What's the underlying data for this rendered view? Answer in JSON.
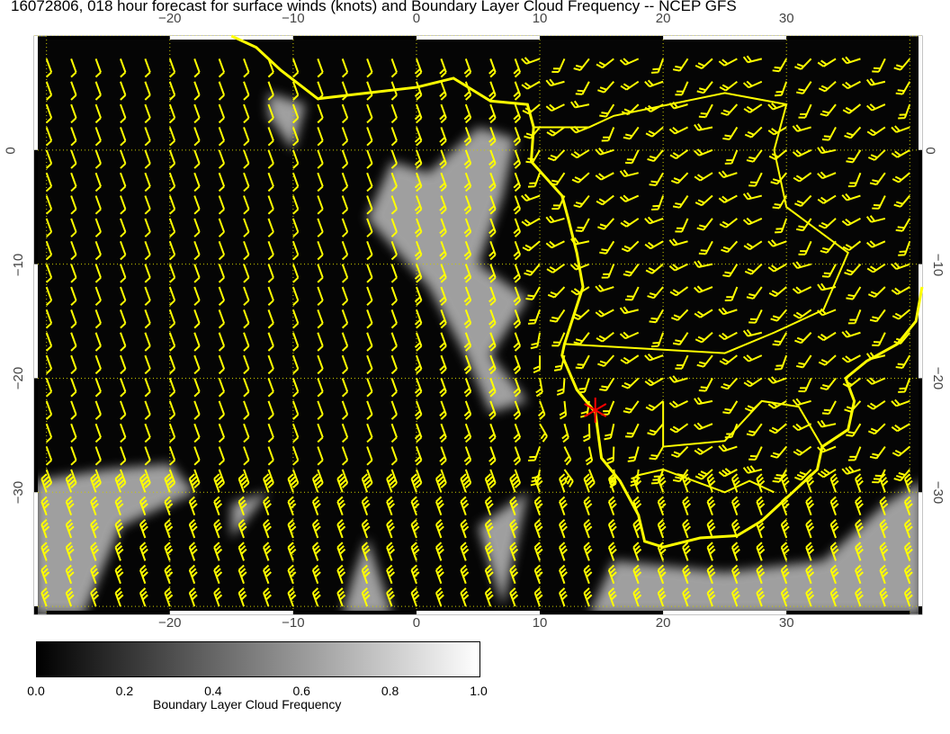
{
  "title": "16072806, 018 hour forecast for surface winds (knots) and Boundary Layer Cloud Frequency -- NCEP GFS",
  "map": {
    "lon_ticks": [
      -20,
      -10,
      0,
      10,
      20,
      30
    ],
    "lat_ticks": [
      0,
      -10,
      -20,
      -30
    ],
    "lon_range": [
      -31,
      41
    ],
    "lat_range": [
      -40.7,
      10
    ],
    "coast_color": "#ffff00",
    "barb_color": "#ffff00",
    "marker": {
      "lon": 14.5,
      "lat": -22.8,
      "color": "#ff0000",
      "icon": "asterisk-marker"
    }
  },
  "colorbar": {
    "title": "Boundary Layer Cloud Frequency",
    "ticks": [
      "0.0",
      "0.2",
      "0.4",
      "0.6",
      "0.8",
      "1.0"
    ],
    "range": [
      0,
      1
    ],
    "colors": [
      "#000000",
      "#ffffff"
    ]
  }
}
